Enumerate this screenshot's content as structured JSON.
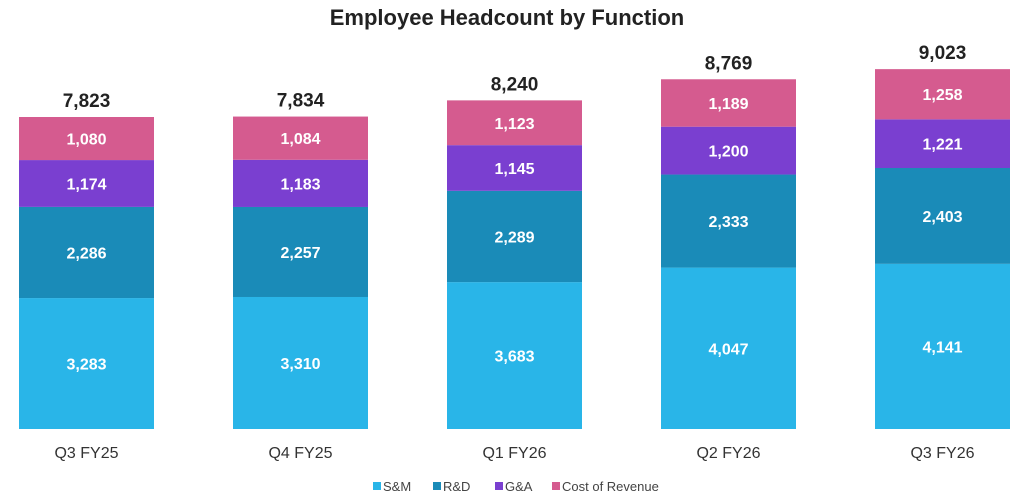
{
  "chart_data": {
    "type": "bar",
    "stacked": true,
    "title": "Employee Headcount by Function",
    "xlabel": "",
    "ylabel": "",
    "grid": false,
    "legend_position": "bottom",
    "categories": [
      "Q3 FY25",
      "Q4 FY25",
      "Q1 FY26",
      "Q2 FY26",
      "Q3 FY26"
    ],
    "totals": [
      "7,823",
      "7,834",
      "8,240",
      "8,769",
      "9,023"
    ],
    "series": [
      {
        "name": "S&M",
        "color": "#29b5e8",
        "values": [
          3283,
          3310,
          3683,
          4047,
          4141
        ],
        "labels": [
          "3,283",
          "3,310",
          "3,683",
          "4,047",
          "4,141"
        ]
      },
      {
        "name": "R&D",
        "color": "#1a8bb8",
        "values": [
          2286,
          2257,
          2289,
          2333,
          2403
        ],
        "labels": [
          "2,286",
          "2,257",
          "2,289",
          "2,333",
          "2,403"
        ]
      },
      {
        "name": "G&A",
        "color": "#7a3fd0",
        "values": [
          1174,
          1183,
          1145,
          1200,
          1221
        ],
        "labels": [
          "1,174",
          "1,183",
          "1,145",
          "1,200",
          "1,221"
        ]
      },
      {
        "name": "Cost of Revenue",
        "color": "#d55b8f",
        "values": [
          1080,
          1084,
          1123,
          1189,
          1258
        ],
        "labels": [
          "1,080",
          "1,084",
          "1,123",
          "1,189",
          "1,258"
        ]
      }
    ]
  }
}
